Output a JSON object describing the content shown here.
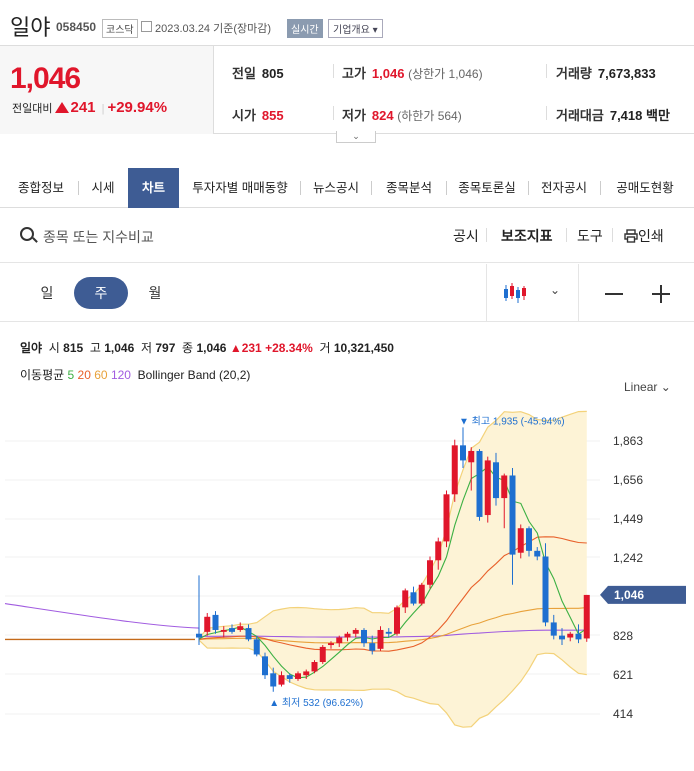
{
  "header": {
    "stock_name": "일야",
    "stock_code": "058450",
    "market_badge": "코스닥",
    "date_text": "2023.03.24  기준(장마감)",
    "live_label": "실시간",
    "corp_label": "기업개요"
  },
  "quote": {
    "price": "1,046",
    "change_label": "전일대비",
    "change_value": "241",
    "change_pct": "+29.94%",
    "prev_label": "전일",
    "prev_value": "805",
    "high_label": "고가",
    "high_value": "1,046",
    "upper_limit": "(상한가 1,046)",
    "volume_label": "거래량",
    "volume_value": "7,673,833",
    "open_label": "시가",
    "open_value": "855",
    "low_label": "저가",
    "low_value": "824",
    "lower_limit": "(하한가 564)",
    "amount_label": "거래대금",
    "amount_value": "7,418 백만"
  },
  "tabs": [
    "종합정보",
    "시세",
    "차트",
    "투자자별 매매동향",
    "뉴스공시",
    "종목분석",
    "종목토론실",
    "전자공시",
    "공매도현황"
  ],
  "search": {
    "placeholder": "종목 또는 지수비교",
    "tools": [
      "공시",
      "보조지표",
      "도구",
      "인쇄"
    ]
  },
  "periods": [
    "일",
    "주",
    "월"
  ],
  "legend": {
    "name": "일야",
    "open_label": "시",
    "open": "815",
    "high_label": "고",
    "high": "1,046",
    "low_label": "저",
    "low": "797",
    "close_label": "종",
    "close": "1,046",
    "chg": "231",
    "chg_pct": "+28.34%",
    "vol_label": "거",
    "vol": "10,321,450",
    "ma_label": "이동평균",
    "ma5": "5",
    "ma20": "20",
    "ma60": "60",
    "ma120": "120",
    "bb_label": "Bollinger Band (20,2)"
  },
  "scale_label": "Linear",
  "colors": {
    "up": "#e0162b",
    "down": "#1e6fd0",
    "accent": "#3e5c94",
    "ma5": "#3cb043",
    "ma20": "#e8602a",
    "ma60": "#e8a13a",
    "ma120": "#a15ce0",
    "bb_fill": "#fdf3d6",
    "bb_line": "#f3d27a"
  },
  "chart_data": {
    "type": "candlestick",
    "y_ticks": [
      "1,863",
      "1,656",
      "1,449",
      "1,242",
      "1,046",
      "828",
      "621",
      "414"
    ],
    "current_price_label": "1,046",
    "high_annotation": "최고 1,935 (-45.94%)",
    "low_annotation": "최저 532 (96.62%)",
    "ylim": [
      414,
      1935
    ],
    "candles": [
      {
        "o": 840,
        "h": 1150,
        "l": 780,
        "c": 820
      },
      {
        "o": 850,
        "h": 950,
        "l": 830,
        "c": 930
      },
      {
        "o": 940,
        "h": 960,
        "l": 840,
        "c": 860
      },
      {
        "o": 850,
        "h": 880,
        "l": 820,
        "c": 860
      },
      {
        "o": 870,
        "h": 890,
        "l": 840,
        "c": 850
      },
      {
        "o": 860,
        "h": 900,
        "l": 850,
        "c": 880
      },
      {
        "o": 870,
        "h": 890,
        "l": 800,
        "c": 810
      },
      {
        "o": 810,
        "h": 830,
        "l": 720,
        "c": 730
      },
      {
        "o": 720,
        "h": 740,
        "l": 600,
        "c": 620
      },
      {
        "o": 630,
        "h": 660,
        "l": 532,
        "c": 560
      },
      {
        "o": 570,
        "h": 640,
        "l": 560,
        "c": 620
      },
      {
        "o": 620,
        "h": 630,
        "l": 580,
        "c": 600
      },
      {
        "o": 600,
        "h": 640,
        "l": 590,
        "c": 630
      },
      {
        "o": 620,
        "h": 650,
        "l": 600,
        "c": 640
      },
      {
        "o": 640,
        "h": 700,
        "l": 630,
        "c": 690
      },
      {
        "o": 690,
        "h": 780,
        "l": 680,
        "c": 770
      },
      {
        "o": 780,
        "h": 800,
        "l": 760,
        "c": 790
      },
      {
        "o": 790,
        "h": 830,
        "l": 770,
        "c": 820
      },
      {
        "o": 820,
        "h": 850,
        "l": 800,
        "c": 840
      },
      {
        "o": 840,
        "h": 870,
        "l": 820,
        "c": 860
      },
      {
        "o": 860,
        "h": 870,
        "l": 770,
        "c": 790
      },
      {
        "o": 790,
        "h": 830,
        "l": 730,
        "c": 750
      },
      {
        "o": 760,
        "h": 880,
        "l": 750,
        "c": 860
      },
      {
        "o": 850,
        "h": 870,
        "l": 820,
        "c": 840
      },
      {
        "o": 840,
        "h": 990,
        "l": 830,
        "c": 980
      },
      {
        "o": 980,
        "h": 1080,
        "l": 950,
        "c": 1070
      },
      {
        "o": 1060,
        "h": 1090,
        "l": 990,
        "c": 1000
      },
      {
        "o": 1000,
        "h": 1110,
        "l": 990,
        "c": 1100
      },
      {
        "o": 1100,
        "h": 1250,
        "l": 1080,
        "c": 1230
      },
      {
        "o": 1230,
        "h": 1350,
        "l": 1180,
        "c": 1330
      },
      {
        "o": 1330,
        "h": 1600,
        "l": 1300,
        "c": 1580
      },
      {
        "o": 1580,
        "h": 1870,
        "l": 1540,
        "c": 1840
      },
      {
        "o": 1840,
        "h": 1935,
        "l": 1720,
        "c": 1760
      },
      {
        "o": 1750,
        "h": 1830,
        "l": 1600,
        "c": 1810
      },
      {
        "o": 1810,
        "h": 1820,
        "l": 1440,
        "c": 1460
      },
      {
        "o": 1470,
        "h": 1780,
        "l": 1430,
        "c": 1760
      },
      {
        "o": 1750,
        "h": 1800,
        "l": 1520,
        "c": 1560
      },
      {
        "o": 1560,
        "h": 1690,
        "l": 1400,
        "c": 1680
      },
      {
        "o": 1680,
        "h": 1720,
        "l": 1100,
        "c": 1260
      },
      {
        "o": 1270,
        "h": 1420,
        "l": 1240,
        "c": 1400
      },
      {
        "o": 1400,
        "h": 1410,
        "l": 1250,
        "c": 1280
      },
      {
        "o": 1280,
        "h": 1300,
        "l": 1230,
        "c": 1250
      },
      {
        "o": 1250,
        "h": 1320,
        "l": 880,
        "c": 900
      },
      {
        "o": 900,
        "h": 940,
        "l": 810,
        "c": 830
      },
      {
        "o": 830,
        "h": 870,
        "l": 780,
        "c": 810
      },
      {
        "o": 820,
        "h": 850,
        "l": 800,
        "c": 840
      },
      {
        "o": 840,
        "h": 890,
        "l": 790,
        "c": 810
      },
      {
        "o": 815,
        "h": 1046,
        "l": 797,
        "c": 1046
      }
    ]
  }
}
